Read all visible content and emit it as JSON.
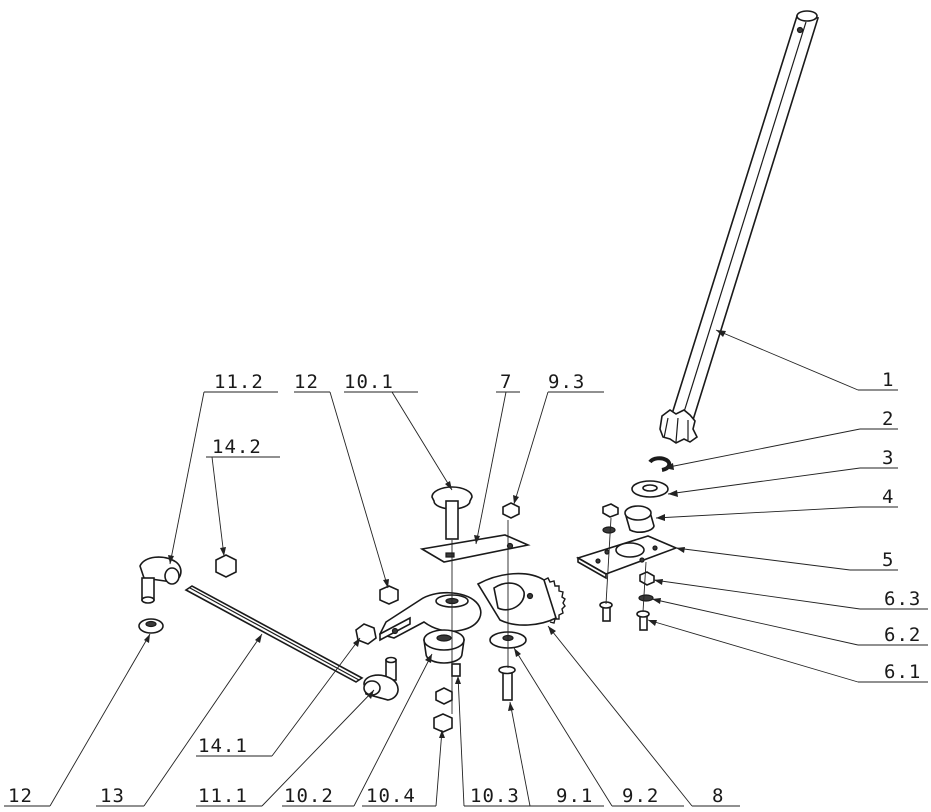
{
  "callouts": [
    {
      "id": "c1",
      "label": "1"
    },
    {
      "id": "c2",
      "label": "2"
    },
    {
      "id": "c3",
      "label": "3"
    },
    {
      "id": "c4",
      "label": "4"
    },
    {
      "id": "c5",
      "label": "5"
    },
    {
      "id": "c63",
      "label": "6.3"
    },
    {
      "id": "c62",
      "label": "6.2"
    },
    {
      "id": "c61",
      "label": "6.1"
    },
    {
      "id": "c112",
      "label": "11.2"
    },
    {
      "id": "c12t",
      "label": "12"
    },
    {
      "id": "c101",
      "label": "10.1"
    },
    {
      "id": "c7",
      "label": "7"
    },
    {
      "id": "c93",
      "label": "9.3"
    },
    {
      "id": "c142",
      "label": "14.2"
    },
    {
      "id": "c141",
      "label": "14.1"
    },
    {
      "id": "c12b",
      "label": "12"
    },
    {
      "id": "c13",
      "label": "13"
    },
    {
      "id": "c111",
      "label": "11.1"
    },
    {
      "id": "c102",
      "label": "10.2"
    },
    {
      "id": "c104",
      "label": "10.4"
    },
    {
      "id": "c103",
      "label": "10.3"
    },
    {
      "id": "c91",
      "label": "9.1"
    },
    {
      "id": "c92",
      "label": "9.2"
    },
    {
      "id": "c8",
      "label": "8"
    }
  ]
}
